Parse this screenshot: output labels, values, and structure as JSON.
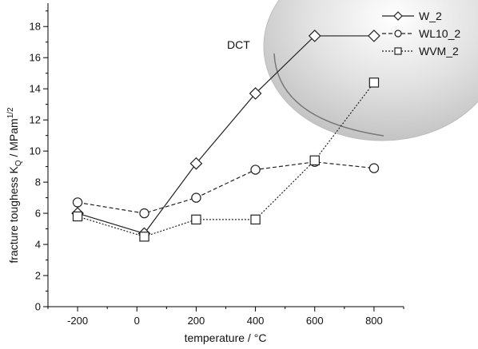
{
  "chart_data": {
    "type": "line",
    "x": [
      -200,
      25,
      200,
      400,
      600,
      800
    ],
    "xticks": [
      -200,
      0,
      200,
      400,
      600,
      800
    ],
    "yticks": [
      0,
      2,
      4,
      6,
      8,
      10,
      12,
      14,
      16,
      18
    ],
    "xlim": [
      -300,
      900
    ],
    "ylim": [
      0,
      19.5
    ],
    "xlabel": "temperature / °C",
    "ylabel": "fracture toughess K",
    "ylabel_sub": "Q",
    "ylabel_unit": " / MPam",
    "ylabel_sup": "1/2",
    "annotation": "DCT",
    "legend_position": "top-right",
    "grid": false,
    "series": [
      {
        "name": "W_2",
        "marker": "diamond",
        "dash": "solid",
        "values": [
          6.0,
          4.7,
          9.2,
          13.7,
          17.4,
          17.4
        ]
      },
      {
        "name": "WL10_2",
        "marker": "circle",
        "dash": "dashed",
        "values": [
          6.7,
          6.0,
          7.0,
          8.8,
          9.3,
          8.9
        ]
      },
      {
        "name": "WVM_2",
        "marker": "square",
        "dash": "dotted",
        "values": [
          5.8,
          4.5,
          5.6,
          5.6,
          9.4,
          14.4
        ]
      }
    ]
  }
}
